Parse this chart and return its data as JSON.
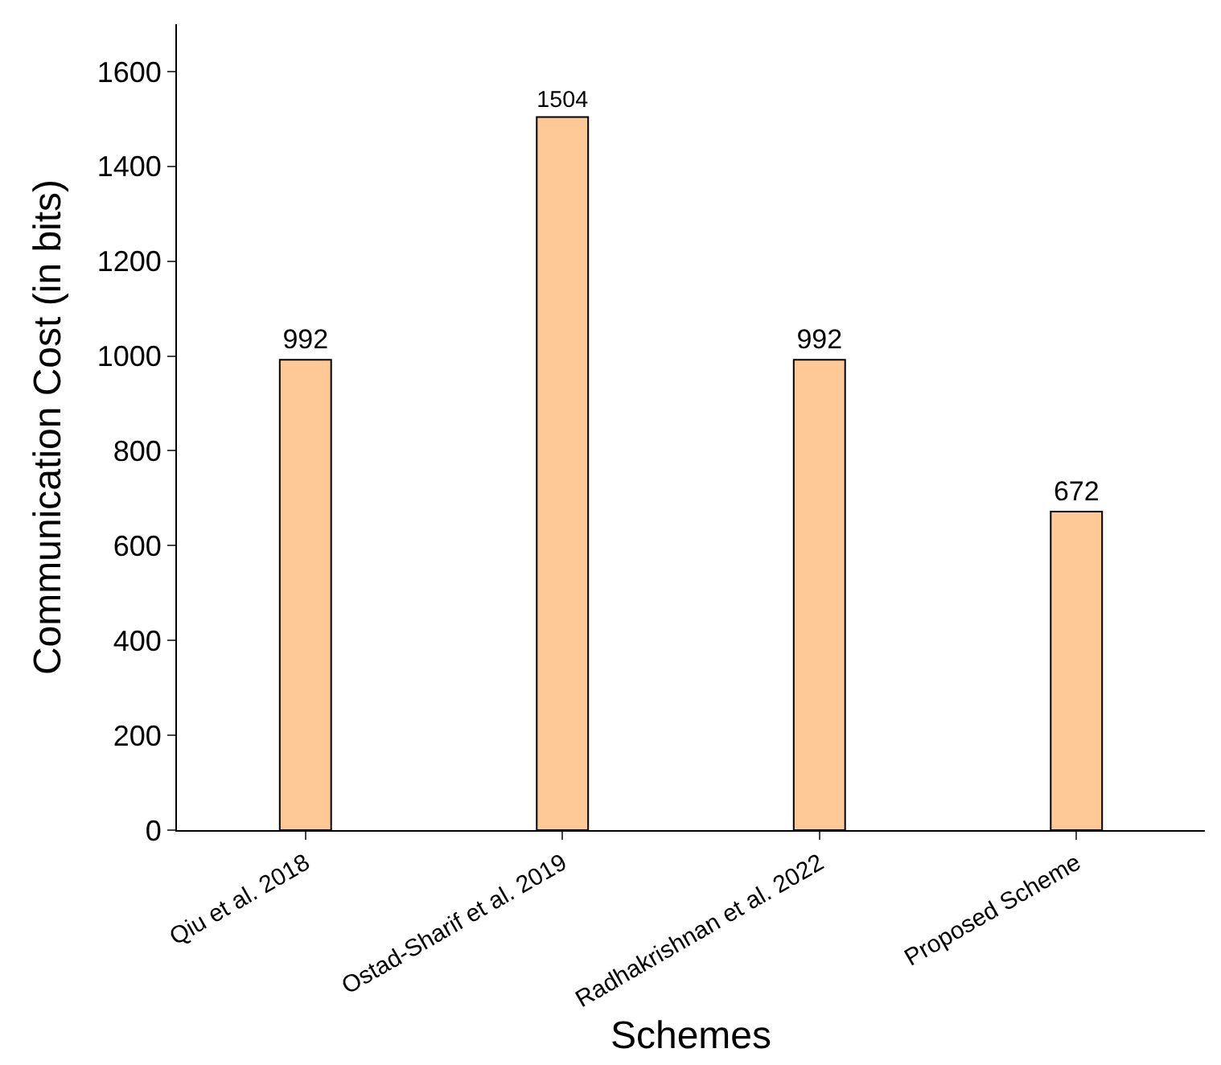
{
  "chart_data": {
    "type": "bar",
    "xlabel": "Schemes",
    "ylabel": "Communication Cost (in bits)",
    "categories": [
      "Qiu et al. 2018",
      "Ostad-Sharif et al. 2019",
      "Radhakrishnan et al. 2022",
      "Proposed Scheme"
    ],
    "values": [
      992,
      1504,
      992,
      672
    ],
    "color": "#ffc896",
    "data_labels": true,
    "ylim": [
      0,
      1700
    ],
    "yticks": [
      0,
      200,
      400,
      600,
      800,
      1000,
      1200,
      1400,
      1600
    ]
  }
}
